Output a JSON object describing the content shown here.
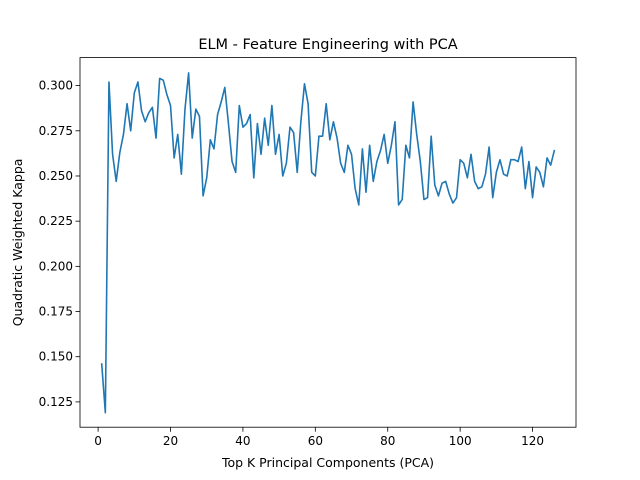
{
  "chart_data": {
    "type": "line",
    "title": "ELM - Feature Engineering with PCA",
    "xlabel": "Top K Principal Components (PCA)",
    "ylabel": "Quadratic Weighted Kappa",
    "xlim": [
      -5,
      132
    ],
    "ylim": [
      0.111,
      0.3155
    ],
    "x_ticks": [
      0,
      20,
      40,
      60,
      80,
      100,
      120
    ],
    "x_tick_labels": [
      "0",
      "20",
      "40",
      "60",
      "80",
      "100",
      "120"
    ],
    "y_ticks": [
      0.125,
      0.15,
      0.175,
      0.2,
      0.225,
      0.25,
      0.275,
      0.3
    ],
    "y_tick_labels": [
      "0.125",
      "0.150",
      "0.175",
      "0.200",
      "0.225",
      "0.250",
      "0.275",
      "0.300"
    ],
    "grid": false,
    "legend": "none",
    "series": [
      {
        "color": "#1f77b4",
        "x": [
          1,
          2,
          3,
          4,
          5,
          6,
          7,
          8,
          9,
          10,
          11,
          12,
          13,
          14,
          15,
          16,
          17,
          18,
          19,
          20,
          21,
          22,
          23,
          24,
          25,
          26,
          27,
          28,
          29,
          30,
          31,
          32,
          33,
          34,
          35,
          36,
          37,
          38,
          39,
          40,
          41,
          42,
          43,
          44,
          45,
          46,
          47,
          48,
          49,
          50,
          51,
          52,
          53,
          54,
          55,
          56,
          57,
          58,
          59,
          60,
          61,
          62,
          63,
          64,
          65,
          66,
          67,
          68,
          69,
          70,
          71,
          72,
          73,
          74,
          75,
          76,
          77,
          78,
          79,
          80,
          81,
          82,
          83,
          84,
          85,
          86,
          87,
          88,
          89,
          90,
          91,
          92,
          93,
          94,
          95,
          96,
          97,
          98,
          99,
          100,
          101,
          102,
          103,
          104,
          105,
          106,
          107,
          108,
          109,
          110,
          111,
          112,
          113,
          114,
          115,
          116,
          117,
          118,
          119,
          120,
          121,
          122,
          123,
          124,
          125,
          126
        ],
        "values": [
          0.146,
          0.119,
          0.302,
          0.262,
          0.247,
          0.263,
          0.273,
          0.29,
          0.275,
          0.296,
          0.302,
          0.286,
          0.28,
          0.285,
          0.288,
          0.271,
          0.304,
          0.303,
          0.295,
          0.289,
          0.26,
          0.273,
          0.251,
          0.287,
          0.307,
          0.271,
          0.287,
          0.283,
          0.239,
          0.249,
          0.27,
          0.265,
          0.284,
          0.291,
          0.299,
          0.279,
          0.258,
          0.252,
          0.289,
          0.277,
          0.279,
          0.284,
          0.249,
          0.279,
          0.262,
          0.282,
          0.267,
          0.289,
          0.262,
          0.273,
          0.25,
          0.257,
          0.277,
          0.274,
          0.252,
          0.28,
          0.301,
          0.29,
          0.252,
          0.25,
          0.272,
          0.272,
          0.29,
          0.27,
          0.28,
          0.271,
          0.257,
          0.252,
          0.267,
          0.262,
          0.243,
          0.234,
          0.265,
          0.241,
          0.267,
          0.247,
          0.258,
          0.264,
          0.273,
          0.257,
          0.267,
          0.28,
          0.234,
          0.237,
          0.267,
          0.26,
          0.291,
          0.273,
          0.258,
          0.237,
          0.238,
          0.272,
          0.245,
          0.239,
          0.246,
          0.247,
          0.24,
          0.235,
          0.238,
          0.259,
          0.257,
          0.249,
          0.262,
          0.247,
          0.243,
          0.244,
          0.251,
          0.266,
          0.238,
          0.252,
          0.259,
          0.251,
          0.25,
          0.259,
          0.259,
          0.258,
          0.266,
          0.243,
          0.258,
          0.238,
          0.255,
          0.252,
          0.244,
          0.26,
          0.256,
          0.264
        ]
      }
    ]
  }
}
